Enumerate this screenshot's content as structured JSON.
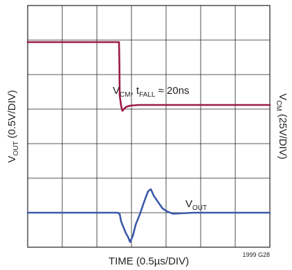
{
  "chart_data": {
    "type": "line",
    "figure_id": "1999 G28",
    "xlabel": "TIME (0.5µs/DIV)",
    "ylabel_left": {
      "main": "V",
      "sub": "OUT",
      "rest": " (0.5V/DIV)"
    },
    "ylabel_right": {
      "main": "V",
      "sub": "CM",
      "rest": " (25V/DIV)"
    },
    "grid": {
      "x_divisions": 7,
      "y_divisions": 7,
      "visible": true
    },
    "xlim": [
      0,
      3.5
    ],
    "x_unit": "µs",
    "annotations": {
      "vcm": {
        "main": "V",
        "sub": "CM",
        "mid": ", t",
        "sub2": "FALL",
        "rest": " ≈ 20ns"
      },
      "vout": {
        "main": "V",
        "sub": "OUT"
      }
    },
    "series": [
      {
        "name": "VCM",
        "color": "#9b1b45",
        "points": [
          [
            0.0,
            5.94
          ],
          [
            1.32,
            5.94
          ],
          [
            1.325,
            5.4
          ],
          [
            1.33,
            4.4
          ],
          [
            1.35,
            4.1
          ],
          [
            1.37,
            3.95
          ],
          [
            1.39,
            4.0
          ],
          [
            1.42,
            4.06
          ],
          [
            1.48,
            4.1
          ],
          [
            1.6,
            4.12
          ],
          [
            3.5,
            4.12
          ]
        ]
      },
      {
        "name": "VOUT",
        "color": "#3a5aa8",
        "points": [
          [
            0.0,
            1.0
          ],
          [
            1.3,
            1.0
          ],
          [
            1.33,
            0.96
          ],
          [
            1.35,
            0.75
          ],
          [
            1.38,
            0.6
          ],
          [
            1.42,
            0.4
          ],
          [
            1.45,
            0.3
          ],
          [
            1.48,
            0.15
          ],
          [
            1.52,
            0.33
          ],
          [
            1.56,
            0.65
          ],
          [
            1.62,
            0.95
          ],
          [
            1.68,
            1.3
          ],
          [
            1.74,
            1.62
          ],
          [
            1.78,
            1.68
          ],
          [
            1.82,
            1.5
          ],
          [
            1.88,
            1.32
          ],
          [
            1.95,
            1.12
          ],
          [
            2.02,
            1.03
          ],
          [
            2.1,
            0.97
          ],
          [
            2.2,
            0.98
          ],
          [
            2.4,
            1.0
          ],
          [
            3.5,
            1.0
          ]
        ]
      }
    ]
  }
}
